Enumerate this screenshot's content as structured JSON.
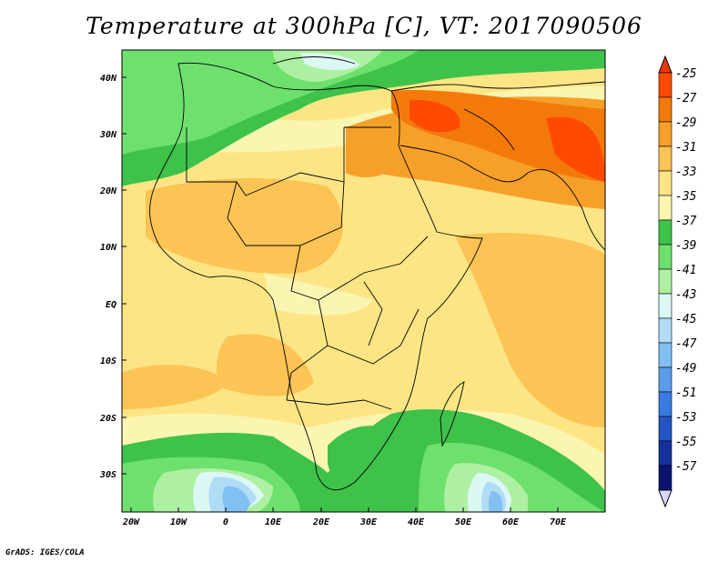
{
  "title": "Temperature at 300hPa [C], VT: 2017090506",
  "credit": "GrADS: IGES/COLA",
  "map": {
    "lon_labels": [
      "20W",
      "10W",
      "0",
      "10E",
      "20E",
      "30E",
      "40E",
      "50E",
      "60E",
      "70E"
    ],
    "lat_labels": [
      "40N",
      "30N",
      "20N",
      "10N",
      "EQ",
      "10S",
      "20S",
      "30S"
    ]
  },
  "colorbar": {
    "levels": [
      {
        "label": "-25",
        "color": "#ff4a00"
      },
      {
        "label": "-27",
        "color": "#f37a0a"
      },
      {
        "label": "-29",
        "color": "#f6a02a"
      },
      {
        "label": "-31",
        "color": "#fbc454"
      },
      {
        "label": "-33",
        "color": "#fde585"
      },
      {
        "label": "-35",
        "color": "#fbf5b2"
      },
      {
        "label": "-37",
        "color": "#3ec24a"
      },
      {
        "label": "-39",
        "color": "#6ee06e"
      },
      {
        "label": "-41",
        "color": "#aef0a2"
      },
      {
        "label": "-43",
        "color": "#dcf8f4"
      },
      {
        "label": "-45",
        "color": "#b0dcf6"
      },
      {
        "label": "-47",
        "color": "#82c0f2"
      },
      {
        "label": "-49",
        "color": "#5a9ceb"
      },
      {
        "label": "-51",
        "color": "#3a7ae3"
      },
      {
        "label": "-53",
        "color": "#2554c4"
      },
      {
        "label": "-55",
        "color": "#14309a"
      },
      {
        "label": "-57",
        "color": "#0a1470"
      }
    ],
    "top_triangle_color": "#e8380a",
    "bottom_triangle_color": "#d8d8f8"
  }
}
